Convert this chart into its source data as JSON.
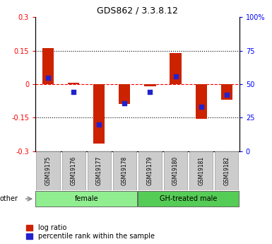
{
  "title": "GDS862 / 3.3.8.12",
  "samples": [
    "GSM19175",
    "GSM19176",
    "GSM19177",
    "GSM19178",
    "GSM19179",
    "GSM19180",
    "GSM19181",
    "GSM19182"
  ],
  "log_ratio": [
    0.162,
    0.005,
    -0.265,
    -0.09,
    -0.01,
    0.14,
    -0.155,
    -0.07
  ],
  "percentile_rank": [
    55,
    44,
    20,
    36,
    44,
    56,
    33,
    42
  ],
  "groups": [
    {
      "label": "female",
      "start": 0,
      "end": 4,
      "color": "#90EE90"
    },
    {
      "label": "GH-treated male",
      "start": 4,
      "end": 8,
      "color": "#55CC55"
    }
  ],
  "ylim_left": [
    -0.3,
    0.3
  ],
  "ylim_right": [
    0,
    100
  ],
  "left_ticks": [
    -0.3,
    -0.15,
    0,
    0.15,
    0.3
  ],
  "right_ticks": [
    0,
    25,
    50,
    75,
    100
  ],
  "bar_color": "#CC2200",
  "dot_color": "#2222CC",
  "bar_width": 0.45,
  "dot_size": 22,
  "other_label": "other",
  "legend_items": [
    "log ratio",
    "percentile rank within the sample"
  ],
  "background_color": "#ffffff",
  "sample_box_color": "#CCCCCC",
  "sample_box_edge": "#999999"
}
